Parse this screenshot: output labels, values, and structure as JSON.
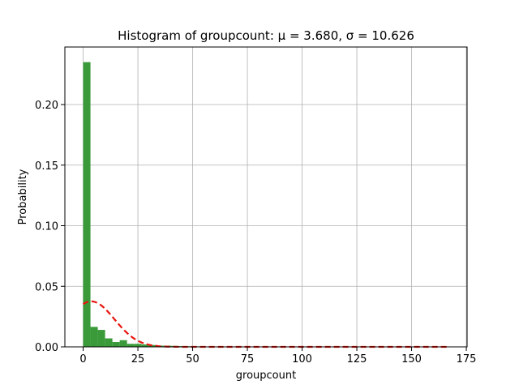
{
  "chart_data": {
    "type": "bar",
    "title": "Histogram of groupcount",
    "title_math": ": μ = 3.680,  σ = 10.626",
    "xlabel": "groupcount",
    "ylabel": "Probability",
    "xlim": [
      -8.35,
      175.35
    ],
    "ylim": [
      0.0,
      0.2475
    ],
    "xticks": [
      0,
      25,
      50,
      75,
      100,
      125,
      150,
      175
    ],
    "yticks": [
      0.0,
      0.05,
      0.1,
      0.15,
      0.2
    ],
    "ytick_labels": [
      "0.00",
      "0.05",
      "0.10",
      "0.15",
      "0.20"
    ],
    "grid": true,
    "bar_color": "#3a9a3a",
    "curve_color": "#e8140c",
    "bin_edges": [
      0,
      3.34,
      6.68,
      10.02,
      13.36,
      16.7,
      20.04,
      23.38,
      26.72,
      30.06,
      33.4,
      36.74,
      40.08,
      43.42,
      46.76,
      50.1,
      53.44,
      56.78,
      60.12,
      63.46,
      66.8,
      70.14,
      73.48,
      76.82,
      80.16,
      83.5,
      86.84,
      90.18,
      93.52,
      96.86,
      100.2,
      103.54,
      106.88,
      110.22,
      113.56,
      116.9,
      120.24,
      123.58,
      126.92,
      130.26,
      133.6,
      136.94,
      140.28,
      143.62,
      146.96,
      150.3,
      153.64,
      156.98,
      160.32,
      163.66,
      167.0
    ],
    "values": [
      0.235,
      0.0165,
      0.014,
      0.007,
      0.004,
      0.0055,
      0.0025,
      0.0025,
      0.002,
      0.0015,
      0.001,
      0.001,
      0.0008,
      0.0006,
      0.0005,
      0.0004,
      0.0003,
      0.0003,
      0.0002,
      0.0002,
      0.0002,
      0.0001,
      0.0001,
      0.0001,
      0.0001,
      0.0001,
      0.0001,
      0.0001,
      0.0001,
      0.0001,
      0.0,
      0.0001,
      0.0,
      0.0001,
      0.0,
      0.0,
      0.0001,
      0.0,
      0.0,
      0.0,
      0.0001,
      0.0,
      0.0,
      0.0,
      0.0,
      0.0,
      0.0,
      0.0,
      0.0,
      0.0001
    ],
    "normal_fit": {
      "mu": 3.68,
      "sigma": 10.626,
      "x_range": [
        0,
        167
      ],
      "style": "dashed"
    }
  }
}
